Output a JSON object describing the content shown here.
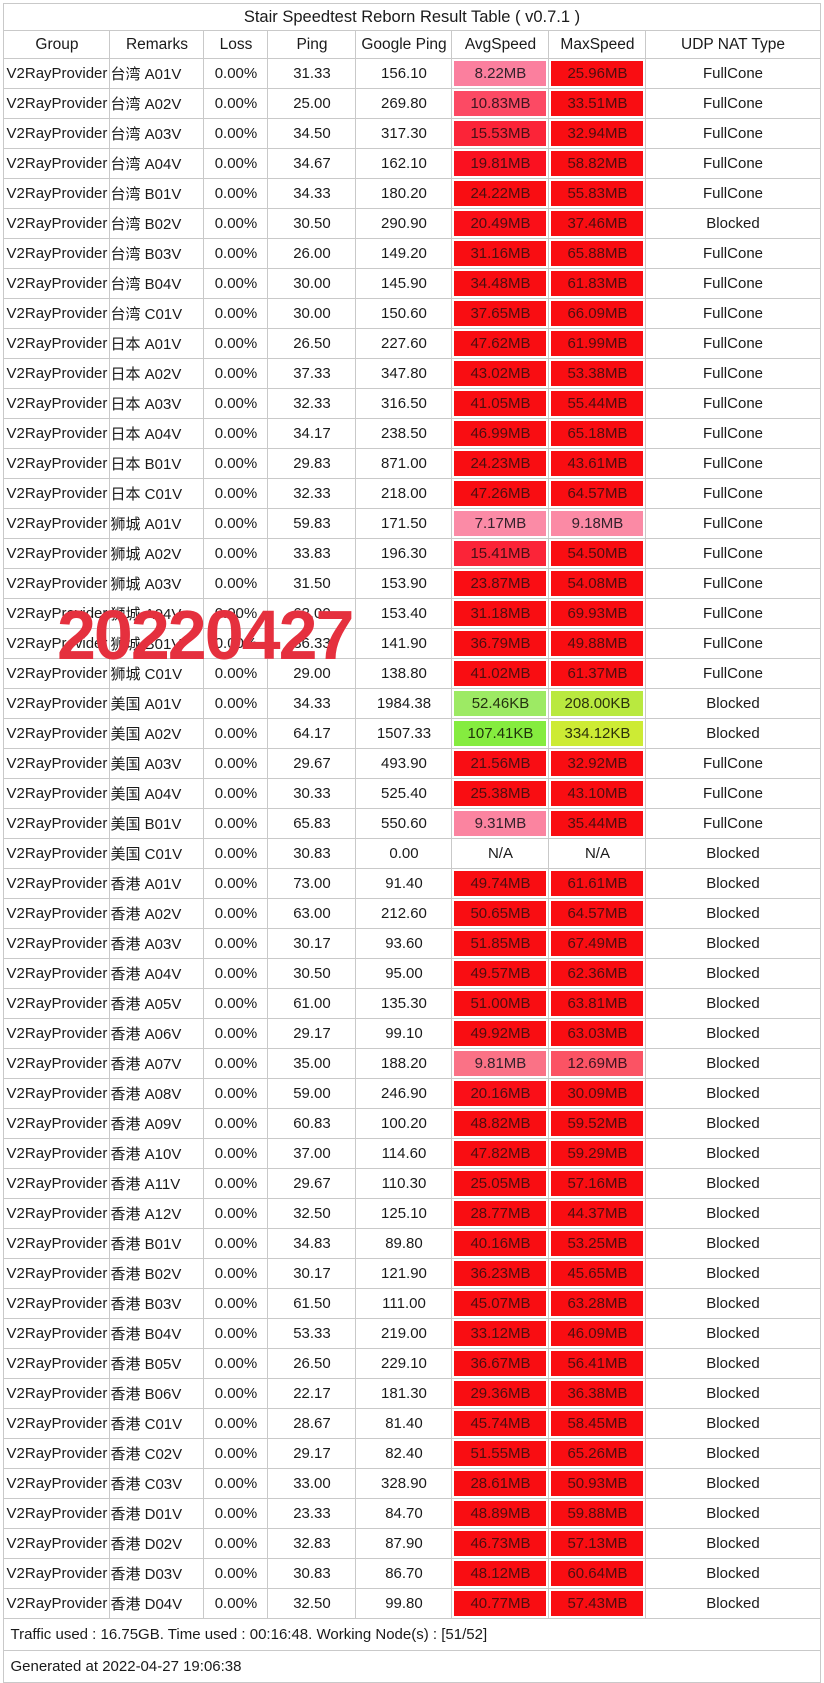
{
  "title": "Stair Speedtest Reborn Result Table ( v0.7.1 )",
  "columns": [
    "Group",
    "Remarks",
    "Loss",
    "Ping",
    "Google Ping",
    "AvgSpeed",
    "MaxSpeed",
    "UDP NAT Type"
  ],
  "watermark": {
    "text": "20220427",
    "color": "#e5303e"
  },
  "footer": {
    "summary": "Traffic used : 16.75GB. Time used : 00:16:48. Working Node(s) : [51/52]",
    "generated": "Generated at 2022-04-27 19:06:38"
  },
  "status_colors": {
    "red": "#f90d12",
    "pink": "#fb8ba6",
    "green_low": "#9dea64",
    "green_mid": "#85ec3f",
    "yellow_green": "#cdeb34"
  },
  "rows": [
    {
      "group": "V2RayProvider",
      "remarks": "台湾 A01V",
      "loss": "0.00%",
      "ping": "31.33",
      "google_ping": "156.10",
      "avg_speed": "8.22MB",
      "avg_bg": "#fb7f9e",
      "avg_fg": "#33222b",
      "max_speed": "25.96MB",
      "max_bg": "#f90d12",
      "max_fg": "#4d0f0f",
      "udp_nat": "FullCone"
    },
    {
      "group": "V2RayProvider",
      "remarks": "台湾 A02V",
      "loss": "0.00%",
      "ping": "25.00",
      "google_ping": "269.80",
      "avg_speed": "10.83MB",
      "avg_bg": "#fc4a64",
      "avg_fg": "#3d1520",
      "max_speed": "33.51MB",
      "max_bg": "#f90d12",
      "max_fg": "#4d0f0f",
      "udp_nat": "FullCone"
    },
    {
      "group": "V2RayProvider",
      "remarks": "台湾 A03V",
      "loss": "0.00%",
      "ping": "34.50",
      "google_ping": "317.30",
      "avg_speed": "15.53MB",
      "avg_bg": "#fb2438",
      "avg_fg": "#471016",
      "max_speed": "32.94MB",
      "max_bg": "#f90d12",
      "max_fg": "#4d0f0f",
      "udp_nat": "FullCone"
    },
    {
      "group": "V2RayProvider",
      "remarks": "台湾 A04V",
      "loss": "0.00%",
      "ping": "34.67",
      "google_ping": "162.10",
      "avg_speed": "19.81MB",
      "avg_bg": "#fa1120",
      "avg_fg": "#4b0f13",
      "max_speed": "58.82MB",
      "max_bg": "#f90d12",
      "max_fg": "#4d0f0f",
      "udp_nat": "FullCone"
    },
    {
      "group": "V2RayProvider",
      "remarks": "台湾 B01V",
      "loss": "0.00%",
      "ping": "34.33",
      "google_ping": "180.20",
      "avg_speed": "24.22MB",
      "avg_bg": "#f90d12",
      "avg_fg": "#4d0f0f",
      "max_speed": "55.83MB",
      "max_bg": "#f90d12",
      "max_fg": "#4d0f0f",
      "udp_nat": "FullCone"
    },
    {
      "group": "V2RayProvider",
      "remarks": "台湾 B02V",
      "loss": "0.00%",
      "ping": "30.50",
      "google_ping": "290.90",
      "avg_speed": "20.49MB",
      "avg_bg": "#fa0f18",
      "avg_fg": "#4b0f13",
      "max_speed": "37.46MB",
      "max_bg": "#f90d12",
      "max_fg": "#4d0f0f",
      "udp_nat": "Blocked"
    },
    {
      "group": "V2RayProvider",
      "remarks": "台湾 B03V",
      "loss": "0.00%",
      "ping": "26.00",
      "google_ping": "149.20",
      "avg_speed": "31.16MB",
      "avg_bg": "#f90d12",
      "avg_fg": "#4d0f0f",
      "max_speed": "65.88MB",
      "max_bg": "#f90d12",
      "max_fg": "#4d0f0f",
      "udp_nat": "FullCone"
    },
    {
      "group": "V2RayProvider",
      "remarks": "台湾 B04V",
      "loss": "0.00%",
      "ping": "30.00",
      "google_ping": "145.90",
      "avg_speed": "34.48MB",
      "avg_bg": "#f90d12",
      "avg_fg": "#4d0f0f",
      "max_speed": "61.83MB",
      "max_bg": "#f90d12",
      "max_fg": "#4d0f0f",
      "udp_nat": "FullCone"
    },
    {
      "group": "V2RayProvider",
      "remarks": "台湾 C01V",
      "loss": "0.00%",
      "ping": "30.00",
      "google_ping": "150.60",
      "avg_speed": "37.65MB",
      "avg_bg": "#f90d12",
      "avg_fg": "#4d0f0f",
      "max_speed": "66.09MB",
      "max_bg": "#f90d12",
      "max_fg": "#4d0f0f",
      "udp_nat": "FullCone"
    },
    {
      "group": "V2RayProvider",
      "remarks": "日本 A01V",
      "loss": "0.00%",
      "ping": "26.50",
      "google_ping": "227.60",
      "avg_speed": "47.62MB",
      "avg_bg": "#f90d12",
      "avg_fg": "#4d0f0f",
      "max_speed": "61.99MB",
      "max_bg": "#f90d12",
      "max_fg": "#4d0f0f",
      "udp_nat": "FullCone"
    },
    {
      "group": "V2RayProvider",
      "remarks": "日本 A02V",
      "loss": "0.00%",
      "ping": "37.33",
      "google_ping": "347.80",
      "avg_speed": "43.02MB",
      "avg_bg": "#f90d12",
      "avg_fg": "#4d0f0f",
      "max_speed": "53.38MB",
      "max_bg": "#f90d12",
      "max_fg": "#4d0f0f",
      "udp_nat": "FullCone"
    },
    {
      "group": "V2RayProvider",
      "remarks": "日本 A03V",
      "loss": "0.00%",
      "ping": "32.33",
      "google_ping": "316.50",
      "avg_speed": "41.05MB",
      "avg_bg": "#f90d12",
      "avg_fg": "#4d0f0f",
      "max_speed": "55.44MB",
      "max_bg": "#f90d12",
      "max_fg": "#4d0f0f",
      "udp_nat": "FullCone"
    },
    {
      "group": "V2RayProvider",
      "remarks": "日本 A04V",
      "loss": "0.00%",
      "ping": "34.17",
      "google_ping": "238.50",
      "avg_speed": "46.99MB",
      "avg_bg": "#f90d12",
      "avg_fg": "#4d0f0f",
      "max_speed": "65.18MB",
      "max_bg": "#f90d12",
      "max_fg": "#4d0f0f",
      "udp_nat": "FullCone"
    },
    {
      "group": "V2RayProvider",
      "remarks": "日本 B01V",
      "loss": "0.00%",
      "ping": "29.83",
      "google_ping": "871.00",
      "avg_speed": "24.23MB",
      "avg_bg": "#f90d12",
      "avg_fg": "#4d0f0f",
      "max_speed": "43.61MB",
      "max_bg": "#f90d12",
      "max_fg": "#4d0f0f",
      "udp_nat": "FullCone"
    },
    {
      "group": "V2RayProvider",
      "remarks": "日本 C01V",
      "loss": "0.00%",
      "ping": "32.33",
      "google_ping": "218.00",
      "avg_speed": "47.26MB",
      "avg_bg": "#f90d12",
      "avg_fg": "#4d0f0f",
      "max_speed": "64.57MB",
      "max_bg": "#f90d12",
      "max_fg": "#4d0f0f",
      "udp_nat": "FullCone"
    },
    {
      "group": "V2RayProvider",
      "remarks": "狮城 A01V",
      "loss": "0.00%",
      "ping": "59.83",
      "google_ping": "171.50",
      "avg_speed": "7.17MB",
      "avg_bg": "#fb8ba6",
      "avg_fg": "#33222b",
      "max_speed": "9.18MB",
      "max_bg": "#fb8aa5",
      "max_fg": "#33222b",
      "udp_nat": "FullCone"
    },
    {
      "group": "V2RayProvider",
      "remarks": "狮城 A02V",
      "loss": "0.00%",
      "ping": "33.83",
      "google_ping": "196.30",
      "avg_speed": "15.41MB",
      "avg_bg": "#fb2438",
      "avg_fg": "#471016",
      "max_speed": "54.50MB",
      "max_bg": "#f90d12",
      "max_fg": "#4d0f0f",
      "udp_nat": "FullCone"
    },
    {
      "group": "V2RayProvider",
      "remarks": "狮城 A03V",
      "loss": "0.00%",
      "ping": "31.50",
      "google_ping": "153.90",
      "avg_speed": "23.87MB",
      "avg_bg": "#fa0d14",
      "avg_fg": "#4b0f13",
      "max_speed": "54.08MB",
      "max_bg": "#f90d12",
      "max_fg": "#4d0f0f",
      "udp_nat": "FullCone"
    },
    {
      "group": "V2RayProvider",
      "remarks": "狮城 A04V",
      "loss": "0.00%",
      "ping": "62.00",
      "google_ping": "153.40",
      "avg_speed": "31.18MB",
      "avg_bg": "#f90d12",
      "avg_fg": "#4d0f0f",
      "max_speed": "69.93MB",
      "max_bg": "#f90d12",
      "max_fg": "#4d0f0f",
      "udp_nat": "FullCone"
    },
    {
      "group": "V2RayProvider",
      "remarks": "狮城 B01V",
      "loss": "0.00%",
      "ping": "36.33",
      "google_ping": "141.90",
      "avg_speed": "36.79MB",
      "avg_bg": "#f90d12",
      "avg_fg": "#4d0f0f",
      "max_speed": "49.88MB",
      "max_bg": "#f90d12",
      "max_fg": "#4d0f0f",
      "udp_nat": "FullCone"
    },
    {
      "group": "V2RayProvider",
      "remarks": "狮城 C01V",
      "loss": "0.00%",
      "ping": "29.00",
      "google_ping": "138.80",
      "avg_speed": "41.02MB",
      "avg_bg": "#f90d12",
      "avg_fg": "#4d0f0f",
      "max_speed": "61.37MB",
      "max_bg": "#f90d12",
      "max_fg": "#4d0f0f",
      "udp_nat": "FullCone"
    },
    {
      "group": "V2RayProvider",
      "remarks": "美国 A01V",
      "loss": "0.00%",
      "ping": "34.33",
      "google_ping": "1984.38",
      "avg_speed": "52.46KB",
      "avg_bg": "#9dea64",
      "avg_fg": "#24330f",
      "max_speed": "208.00KB",
      "max_bg": "#b9e93f",
      "max_fg": "#2a330c",
      "udp_nat": "Blocked"
    },
    {
      "group": "V2RayProvider",
      "remarks": "美国 A02V",
      "loss": "0.00%",
      "ping": "64.17",
      "google_ping": "1507.33",
      "avg_speed": "107.41KB",
      "avg_bg": "#85ec3f",
      "avg_fg": "#1f330b",
      "max_speed": "334.12KB",
      "max_bg": "#cdeb34",
      "max_fg": "#2e330a",
      "udp_nat": "Blocked"
    },
    {
      "group": "V2RayProvider",
      "remarks": "美国 A03V",
      "loss": "0.00%",
      "ping": "29.67",
      "google_ping": "493.90",
      "avg_speed": "21.56MB",
      "avg_bg": "#f90d14",
      "avg_fg": "#4b0f13",
      "max_speed": "32.92MB",
      "max_bg": "#f90d12",
      "max_fg": "#4d0f0f",
      "udp_nat": "FullCone"
    },
    {
      "group": "V2RayProvider",
      "remarks": "美国 A04V",
      "loss": "0.00%",
      "ping": "30.33",
      "google_ping": "525.40",
      "avg_speed": "25.38MB",
      "avg_bg": "#f90d12",
      "avg_fg": "#4d0f0f",
      "max_speed": "43.10MB",
      "max_bg": "#f90d12",
      "max_fg": "#4d0f0f",
      "udp_nat": "FullCone"
    },
    {
      "group": "V2RayProvider",
      "remarks": "美国 B01V",
      "loss": "0.00%",
      "ping": "65.83",
      "google_ping": "550.60",
      "avg_speed": "9.31MB",
      "avg_bg": "#fb84a0",
      "avg_fg": "#33222b",
      "max_speed": "35.44MB",
      "max_bg": "#f90d12",
      "max_fg": "#4d0f0f",
      "udp_nat": "FullCone"
    },
    {
      "group": "V2RayProvider",
      "remarks": "美国 C01V",
      "loss": "0.00%",
      "ping": "30.83",
      "google_ping": "0.00",
      "avg_speed": "N/A",
      "avg_bg": "",
      "avg_fg": "#1a1a1a",
      "max_speed": "N/A",
      "max_bg": "",
      "max_fg": "#1a1a1a",
      "udp_nat": "Blocked"
    },
    {
      "group": "V2RayProvider",
      "remarks": "香港 A01V",
      "loss": "0.00%",
      "ping": "73.00",
      "google_ping": "91.40",
      "avg_speed": "49.74MB",
      "avg_bg": "#f90d12",
      "avg_fg": "#4d0f0f",
      "max_speed": "61.61MB",
      "max_bg": "#f90d12",
      "max_fg": "#4d0f0f",
      "udp_nat": "Blocked"
    },
    {
      "group": "V2RayProvider",
      "remarks": "香港 A02V",
      "loss": "0.00%",
      "ping": "63.00",
      "google_ping": "212.60",
      "avg_speed": "50.65MB",
      "avg_bg": "#f90d12",
      "avg_fg": "#4d0f0f",
      "max_speed": "64.57MB",
      "max_bg": "#f90d12",
      "max_fg": "#4d0f0f",
      "udp_nat": "Blocked"
    },
    {
      "group": "V2RayProvider",
      "remarks": "香港 A03V",
      "loss": "0.00%",
      "ping": "30.17",
      "google_ping": "93.60",
      "avg_speed": "51.85MB",
      "avg_bg": "#f90d12",
      "avg_fg": "#4d0f0f",
      "max_speed": "67.49MB",
      "max_bg": "#f90d12",
      "max_fg": "#4d0f0f",
      "udp_nat": "Blocked"
    },
    {
      "group": "V2RayProvider",
      "remarks": "香港 A04V",
      "loss": "0.00%",
      "ping": "30.50",
      "google_ping": "95.00",
      "avg_speed": "49.57MB",
      "avg_bg": "#f90d12",
      "avg_fg": "#4d0f0f",
      "max_speed": "62.36MB",
      "max_bg": "#f90d12",
      "max_fg": "#4d0f0f",
      "udp_nat": "Blocked"
    },
    {
      "group": "V2RayProvider",
      "remarks": "香港 A05V",
      "loss": "0.00%",
      "ping": "61.00",
      "google_ping": "135.30",
      "avg_speed": "51.00MB",
      "avg_bg": "#f90d12",
      "avg_fg": "#4d0f0f",
      "max_speed": "63.81MB",
      "max_bg": "#f90d12",
      "max_fg": "#4d0f0f",
      "udp_nat": "Blocked"
    },
    {
      "group": "V2RayProvider",
      "remarks": "香港 A06V",
      "loss": "0.00%",
      "ping": "29.17",
      "google_ping": "99.10",
      "avg_speed": "49.92MB",
      "avg_bg": "#f90d12",
      "avg_fg": "#4d0f0f",
      "max_speed": "63.03MB",
      "max_bg": "#f90d12",
      "max_fg": "#4d0f0f",
      "udp_nat": "Blocked"
    },
    {
      "group": "V2RayProvider",
      "remarks": "香港 A07V",
      "loss": "0.00%",
      "ping": "35.00",
      "google_ping": "188.20",
      "avg_speed": "9.81MB",
      "avg_bg": "#fa7286",
      "avg_fg": "#33222b",
      "max_speed": "12.69MB",
      "max_bg": "#fb5364",
      "max_fg": "#3d1520",
      "udp_nat": "Blocked"
    },
    {
      "group": "V2RayProvider",
      "remarks": "香港 A08V",
      "loss": "0.00%",
      "ping": "59.00",
      "google_ping": "246.90",
      "avg_speed": "20.16MB",
      "avg_bg": "#fa0f18",
      "avg_fg": "#4b0f13",
      "max_speed": "30.09MB",
      "max_bg": "#f90d12",
      "max_fg": "#4d0f0f",
      "udp_nat": "Blocked"
    },
    {
      "group": "V2RayProvider",
      "remarks": "香港 A09V",
      "loss": "0.00%",
      "ping": "60.83",
      "google_ping": "100.20",
      "avg_speed": "48.82MB",
      "avg_bg": "#f90d12",
      "avg_fg": "#4d0f0f",
      "max_speed": "59.52MB",
      "max_bg": "#f90d12",
      "max_fg": "#4d0f0f",
      "udp_nat": "Blocked"
    },
    {
      "group": "V2RayProvider",
      "remarks": "香港 A10V",
      "loss": "0.00%",
      "ping": "37.00",
      "google_ping": "114.60",
      "avg_speed": "47.82MB",
      "avg_bg": "#f90d12",
      "avg_fg": "#4d0f0f",
      "max_speed": "59.29MB",
      "max_bg": "#f90d12",
      "max_fg": "#4d0f0f",
      "udp_nat": "Blocked"
    },
    {
      "group": "V2RayProvider",
      "remarks": "香港 A11V",
      "loss": "0.00%",
      "ping": "29.67",
      "google_ping": "110.30",
      "avg_speed": "25.05MB",
      "avg_bg": "#f90d12",
      "avg_fg": "#4d0f0f",
      "max_speed": "57.16MB",
      "max_bg": "#f90d12",
      "max_fg": "#4d0f0f",
      "udp_nat": "Blocked"
    },
    {
      "group": "V2RayProvider",
      "remarks": "香港 A12V",
      "loss": "0.00%",
      "ping": "32.50",
      "google_ping": "125.10",
      "avg_speed": "28.77MB",
      "avg_bg": "#f90d12",
      "avg_fg": "#4d0f0f",
      "max_speed": "44.37MB",
      "max_bg": "#f90d12",
      "max_fg": "#4d0f0f",
      "udp_nat": "Blocked"
    },
    {
      "group": "V2RayProvider",
      "remarks": "香港 B01V",
      "loss": "0.00%",
      "ping": "34.83",
      "google_ping": "89.80",
      "avg_speed": "40.16MB",
      "avg_bg": "#f90d12",
      "avg_fg": "#4d0f0f",
      "max_speed": "53.25MB",
      "max_bg": "#f90d12",
      "max_fg": "#4d0f0f",
      "udp_nat": "Blocked"
    },
    {
      "group": "V2RayProvider",
      "remarks": "香港 B02V",
      "loss": "0.00%",
      "ping": "30.17",
      "google_ping": "121.90",
      "avg_speed": "36.23MB",
      "avg_bg": "#f90d12",
      "avg_fg": "#4d0f0f",
      "max_speed": "45.65MB",
      "max_bg": "#f90d12",
      "max_fg": "#4d0f0f",
      "udp_nat": "Blocked"
    },
    {
      "group": "V2RayProvider",
      "remarks": "香港 B03V",
      "loss": "0.00%",
      "ping": "61.50",
      "google_ping": "111.00",
      "avg_speed": "45.07MB",
      "avg_bg": "#f90d12",
      "avg_fg": "#4d0f0f",
      "max_speed": "63.28MB",
      "max_bg": "#f90d12",
      "max_fg": "#4d0f0f",
      "udp_nat": "Blocked"
    },
    {
      "group": "V2RayProvider",
      "remarks": "香港 B04V",
      "loss": "0.00%",
      "ping": "53.33",
      "google_ping": "219.00",
      "avg_speed": "33.12MB",
      "avg_bg": "#f90d12",
      "avg_fg": "#4d0f0f",
      "max_speed": "46.09MB",
      "max_bg": "#f90d12",
      "max_fg": "#4d0f0f",
      "udp_nat": "Blocked"
    },
    {
      "group": "V2RayProvider",
      "remarks": "香港 B05V",
      "loss": "0.00%",
      "ping": "26.50",
      "google_ping": "229.10",
      "avg_speed": "36.67MB",
      "avg_bg": "#f90d12",
      "avg_fg": "#4d0f0f",
      "max_speed": "56.41MB",
      "max_bg": "#f90d12",
      "max_fg": "#4d0f0f",
      "udp_nat": "Blocked"
    },
    {
      "group": "V2RayProvider",
      "remarks": "香港 B06V",
      "loss": "0.00%",
      "ping": "22.17",
      "google_ping": "181.30",
      "avg_speed": "29.36MB",
      "avg_bg": "#f90d12",
      "avg_fg": "#4d0f0f",
      "max_speed": "36.38MB",
      "max_bg": "#f90d12",
      "max_fg": "#4d0f0f",
      "udp_nat": "Blocked"
    },
    {
      "group": "V2RayProvider",
      "remarks": "香港 C01V",
      "loss": "0.00%",
      "ping": "28.67",
      "google_ping": "81.40",
      "avg_speed": "45.74MB",
      "avg_bg": "#f90d12",
      "avg_fg": "#4d0f0f",
      "max_speed": "58.45MB",
      "max_bg": "#f90d12",
      "max_fg": "#4d0f0f",
      "udp_nat": "Blocked"
    },
    {
      "group": "V2RayProvider",
      "remarks": "香港 C02V",
      "loss": "0.00%",
      "ping": "29.17",
      "google_ping": "82.40",
      "avg_speed": "51.55MB",
      "avg_bg": "#f90d12",
      "avg_fg": "#4d0f0f",
      "max_speed": "65.26MB",
      "max_bg": "#f90d12",
      "max_fg": "#4d0f0f",
      "udp_nat": "Blocked"
    },
    {
      "group": "V2RayProvider",
      "remarks": "香港 C03V",
      "loss": "0.00%",
      "ping": "33.00",
      "google_ping": "328.90",
      "avg_speed": "28.61MB",
      "avg_bg": "#f90d12",
      "avg_fg": "#4d0f0f",
      "max_speed": "50.93MB",
      "max_bg": "#f90d12",
      "max_fg": "#4d0f0f",
      "udp_nat": "Blocked"
    },
    {
      "group": "V2RayProvider",
      "remarks": "香港 D01V",
      "loss": "0.00%",
      "ping": "23.33",
      "google_ping": "84.70",
      "avg_speed": "48.89MB",
      "avg_bg": "#f90d12",
      "avg_fg": "#4d0f0f",
      "max_speed": "59.88MB",
      "max_bg": "#f90d12",
      "max_fg": "#4d0f0f",
      "udp_nat": "Blocked"
    },
    {
      "group": "V2RayProvider",
      "remarks": "香港 D02V",
      "loss": "0.00%",
      "ping": "32.83",
      "google_ping": "87.90",
      "avg_speed": "46.73MB",
      "avg_bg": "#f90d12",
      "avg_fg": "#4d0f0f",
      "max_speed": "57.13MB",
      "max_bg": "#f90d12",
      "max_fg": "#4d0f0f",
      "udp_nat": "Blocked"
    },
    {
      "group": "V2RayProvider",
      "remarks": "香港 D03V",
      "loss": "0.00%",
      "ping": "30.83",
      "google_ping": "86.70",
      "avg_speed": "48.12MB",
      "avg_bg": "#f90d12",
      "avg_fg": "#4d0f0f",
      "max_speed": "60.64MB",
      "max_bg": "#f90d12",
      "max_fg": "#4d0f0f",
      "udp_nat": "Blocked"
    },
    {
      "group": "V2RayProvider",
      "remarks": "香港 D04V",
      "loss": "0.00%",
      "ping": "32.50",
      "google_ping": "99.80",
      "avg_speed": "40.77MB",
      "avg_bg": "#f90d12",
      "avg_fg": "#4d0f0f",
      "max_speed": "57.43MB",
      "max_bg": "#f90d12",
      "max_fg": "#4d0f0f",
      "udp_nat": "Blocked"
    }
  ]
}
